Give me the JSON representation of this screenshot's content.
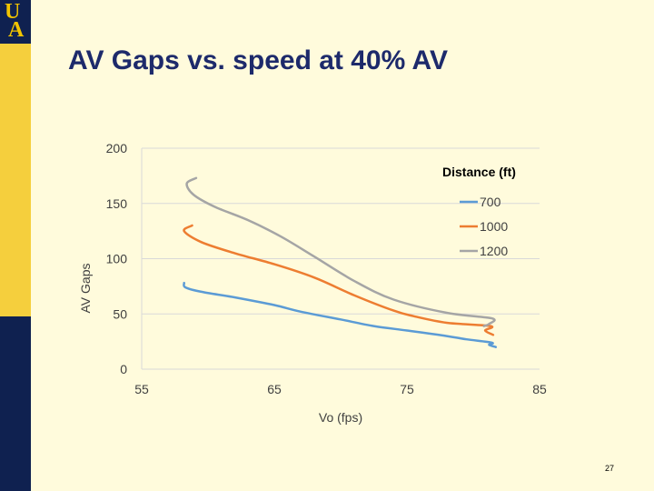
{
  "slide": {
    "title": "AV Gaps vs. speed at 40% AV",
    "page_number": "27",
    "logo_letters": [
      "U",
      "A"
    ],
    "colors": {
      "navy": "#0f2150",
      "gold": "#f5cf3d",
      "pale_background": "#fffbdc",
      "title": "#1d2a6b"
    }
  },
  "chart_data": {
    "type": "line",
    "title": "",
    "xlabel": "Vo (fps)",
    "ylabel": "AV Gaps",
    "xlim": [
      55,
      85
    ],
    "ylim": [
      0,
      200
    ],
    "x_ticks": [
      55,
      65,
      75,
      85
    ],
    "y_ticks": [
      0,
      50,
      100,
      150,
      200
    ],
    "grid": "horizontal",
    "legend": {
      "title": "Distance (ft)",
      "position": "top-right"
    },
    "series": [
      {
        "name": "700",
        "color": "#5b9bd5",
        "points": [
          [
            58.2,
            78
          ],
          [
            58.3,
            74
          ],
          [
            59.5,
            70
          ],
          [
            62,
            65
          ],
          [
            65,
            58
          ],
          [
            67,
            52
          ],
          [
            70,
            45
          ],
          [
            72.5,
            39
          ],
          [
            75,
            35
          ],
          [
            78,
            30
          ],
          [
            79.5,
            27
          ],
          [
            81.4,
            24
          ],
          [
            81.2,
            22
          ],
          [
            81.7,
            20
          ]
        ]
      },
      {
        "name": "1000",
        "color": "#ed7d31",
        "points": [
          [
            58.8,
            130
          ],
          [
            58.2,
            125
          ],
          [
            59.5,
            115
          ],
          [
            62,
            105
          ],
          [
            65,
            95
          ],
          [
            68,
            83
          ],
          [
            71,
            67
          ],
          [
            74,
            53
          ],
          [
            75.5,
            48
          ],
          [
            78,
            42
          ],
          [
            81.3,
            39
          ],
          [
            80.9,
            35
          ],
          [
            81.5,
            31
          ]
        ]
      },
      {
        "name": "1200",
        "color": "#a5a5a5",
        "points": [
          [
            59.1,
            173
          ],
          [
            58.4,
            168
          ],
          [
            58.9,
            158
          ],
          [
            60.5,
            147
          ],
          [
            63,
            135
          ],
          [
            65.5,
            120
          ],
          [
            68,
            102
          ],
          [
            71,
            80
          ],
          [
            74,
            63
          ],
          [
            78,
            51
          ],
          [
            81.4,
            46
          ],
          [
            81.2,
            41
          ],
          [
            80.8,
            39
          ]
        ]
      }
    ]
  }
}
